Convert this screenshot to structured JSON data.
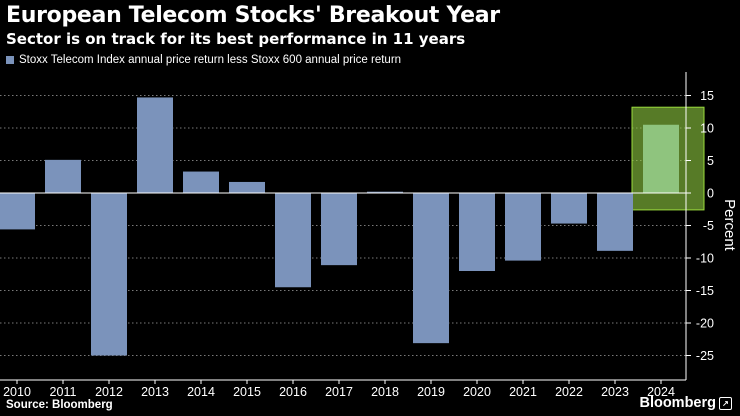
{
  "header": {
    "title": "European Telecom Stocks' Breakout Year",
    "subtitle": "Sector is on track for its best performance in 11 years"
  },
  "footer": {
    "source": "Source: Bloomberg",
    "brand": "Bloomberg",
    "brand_badge_icon": "graph-badge-icon"
  },
  "colors": {
    "background": "#000000",
    "bar": "#7b93bb",
    "highlight_fill": "#8cc63f",
    "highlight_border": "#9bdc3c",
    "gridline": "#7a7a7a",
    "text": "#ffffff"
  },
  "chart_data": {
    "type": "bar",
    "title": "European Telecom Stocks' Breakout Year",
    "subtitle": "Sector is on track for its best performance in 11 years",
    "categories": [
      "2010",
      "2011",
      "2012",
      "2013",
      "2014",
      "2015",
      "2016",
      "2017",
      "2018",
      "2019",
      "2020",
      "2021",
      "2022",
      "2023",
      "2024"
    ],
    "series": [
      {
        "name": "Stoxx Telecom Index annual price return less Stoxx 600 annual price return",
        "values": [
          -5.6,
          5.1,
          -25.0,
          14.7,
          3.3,
          1.7,
          -14.5,
          -11.1,
          0.2,
          -23.1,
          -12.0,
          -10.4,
          -4.7,
          -8.9,
          10.5
        ]
      }
    ],
    "ylabel": "Percent",
    "xlabel": "",
    "ylim": [
      -28,
      18
    ],
    "yticks": [
      15,
      10,
      5,
      0,
      -5,
      -10,
      -15,
      -20,
      -25
    ],
    "ytick_labels": [
      "15",
      "10",
      "5",
      "0",
      "-5",
      "-10",
      "-15",
      "-20",
      "-25"
    ],
    "y_axis_side": "right",
    "grid": true,
    "legend_position": "top-left",
    "highlight": {
      "category": "2024",
      "style": "green box"
    }
  }
}
